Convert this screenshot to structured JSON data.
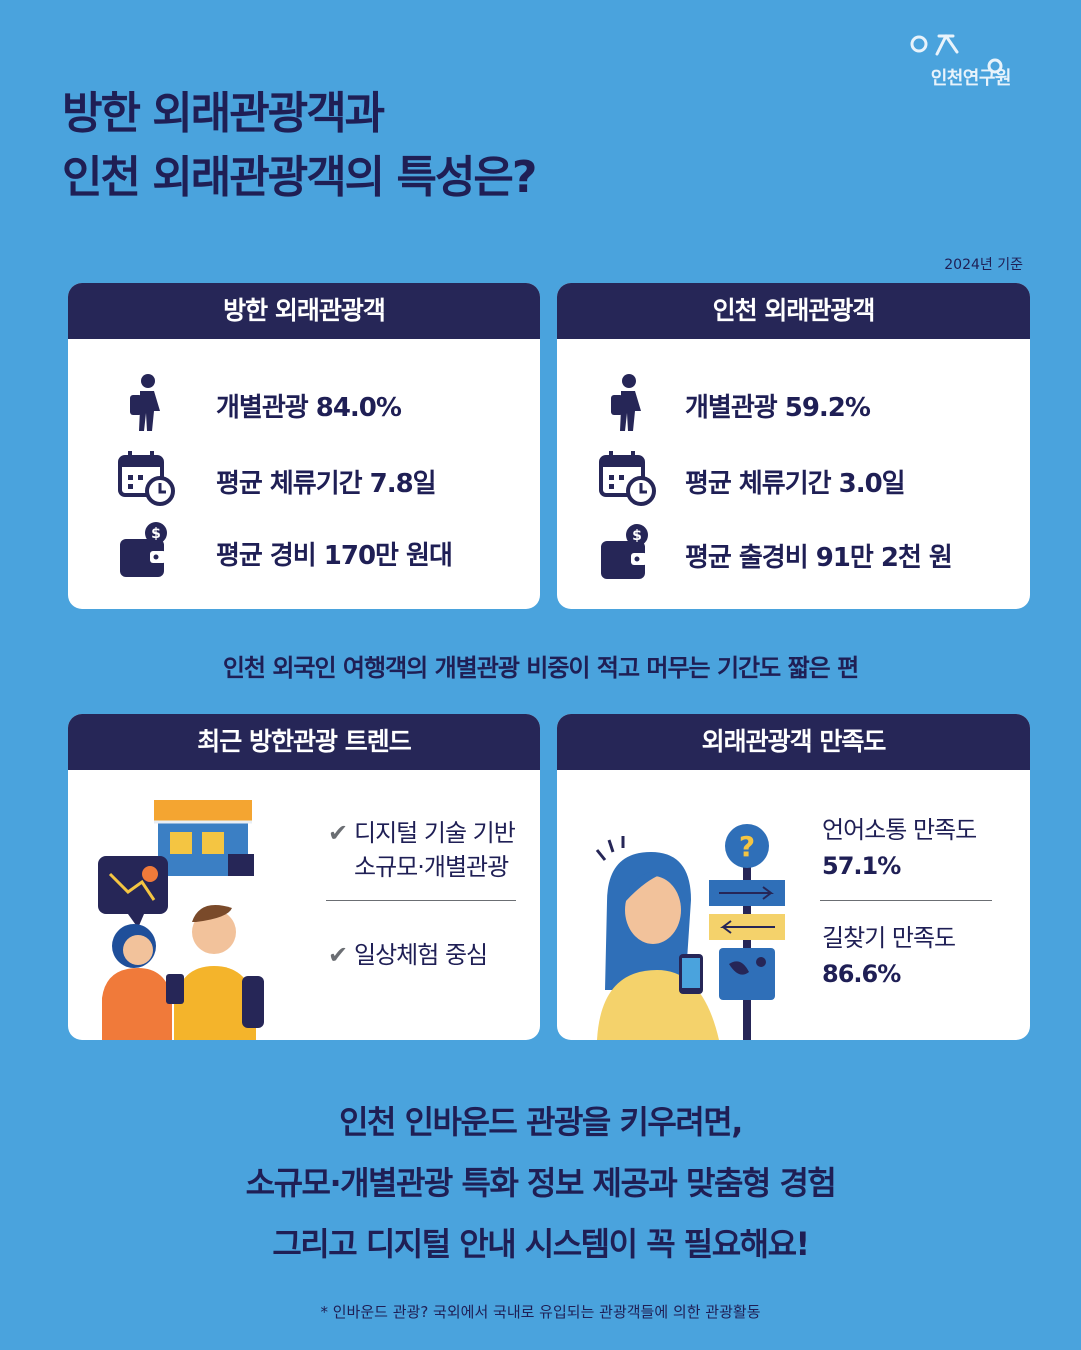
{
  "logo": {
    "text": "인천연구원"
  },
  "title": {
    "line1": "방한 외래관광객과",
    "line2": "인천 외래관광객의 특성은?"
  },
  "basis": "2024년 기준",
  "korea_card": {
    "title": "방한 외래관광객",
    "stats": [
      {
        "icon": "traveler-icon",
        "text": "개별관광  84.0%"
      },
      {
        "icon": "calendar-clock-icon",
        "text": "평균 체류기간 7.8일"
      },
      {
        "icon": "wallet-icon",
        "text": "평균 경비 170만 원대"
      }
    ]
  },
  "incheon_card": {
    "title": "인천 외래관광객",
    "stats": [
      {
        "icon": "traveler-icon",
        "text": "개별관광 59.2%"
      },
      {
        "icon": "calendar-clock-icon",
        "text": "평균 체류기간 3.0일"
      },
      {
        "icon": "wallet-icon",
        "text": "평균 출경비 91만 2천 원"
      }
    ]
  },
  "middle_text": "인천  외국인 여행객의 개별관광 비중이 적고 머무는 기간도 짧은 편",
  "trend_card": {
    "title": "최근 방한관광 트렌드",
    "items": [
      {
        "line1": "디지털 기술 기반",
        "line2": "소규모·개별관광"
      },
      {
        "line1": "일상체험 중심"
      }
    ]
  },
  "satisfaction_card": {
    "title": "외래관광객 만족도",
    "items": [
      {
        "label": "언어소통 만족도",
        "value": "57.1%"
      },
      {
        "label": "길찾기 만족도",
        "value": "86.6%"
      }
    ]
  },
  "closing": {
    "line1": "인천 인바운드 관광을 키우려면,",
    "line2": "소규모·개별관광 특화 정보 제공과  맞춤형 경험",
    "line3": "그리고 디지털 안내 시스템이 꼭 필요해요!"
  },
  "footnote": "*  인바운드 관광? 국외에서 국내로 유입되는 관광객들에 의한 관광활동",
  "colors": {
    "background": "#4aa3dd",
    "navy": "#262657",
    "text": "#1f1f55",
    "card": "#ffffff"
  }
}
